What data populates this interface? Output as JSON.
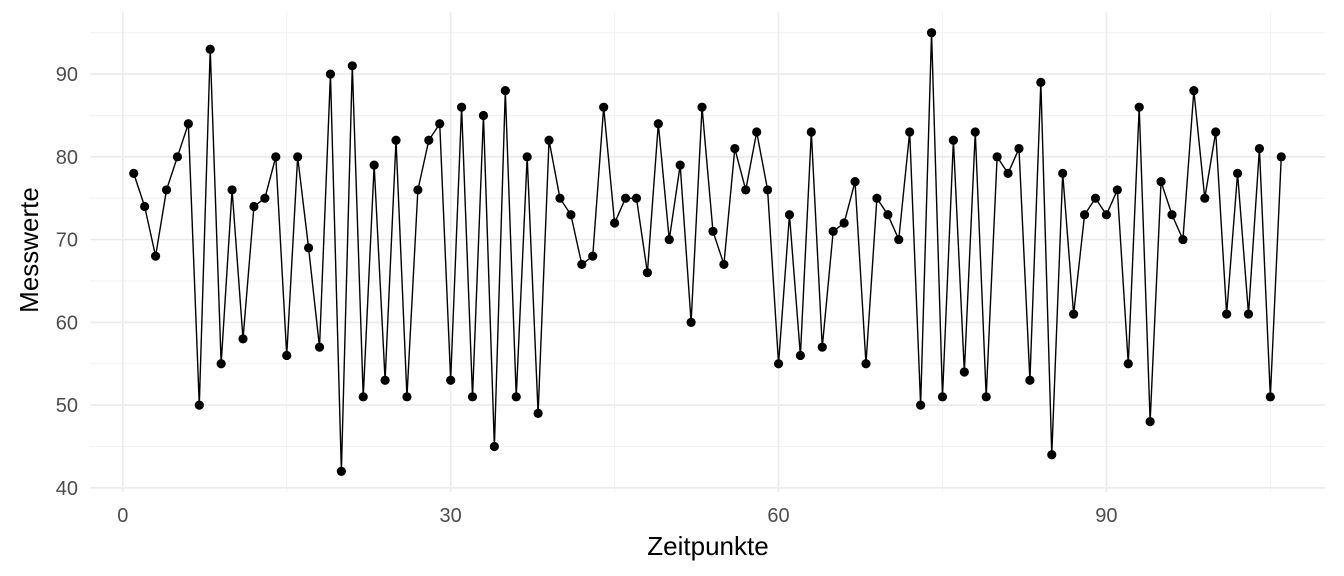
{
  "chart_data": {
    "type": "line",
    "title": "",
    "xlabel": "Zeitpunkte",
    "ylabel": "Messwerte",
    "xlim": [
      -3,
      110
    ],
    "ylim": [
      39.5,
      97.5
    ],
    "x_ticks": [
      0,
      30,
      60,
      90
    ],
    "x_tick_labels": [
      "0",
      "30",
      "60",
      "90"
    ],
    "x_minor_ticks": [
      15,
      45,
      75,
      105
    ],
    "y_ticks": [
      40,
      50,
      60,
      70,
      80,
      90
    ],
    "y_tick_labels": [
      "40",
      "50",
      "60",
      "70",
      "80",
      "90"
    ],
    "y_minor_ticks": [
      45,
      55,
      65,
      75,
      85,
      95
    ],
    "grid": true,
    "legend": "none",
    "colors": {
      "line": "#000000",
      "point": "#000000",
      "grid_major": "#ebebeb",
      "grid_minor": "#f2f2f2",
      "tick_text": "#4d4d4d"
    },
    "series": [
      {
        "x": [
          1,
          2,
          3,
          4,
          5,
          6,
          7,
          8,
          9,
          10,
          11,
          12,
          13,
          14,
          15,
          16,
          17,
          18,
          19,
          20,
          21,
          22,
          23,
          24,
          25,
          26,
          27,
          28,
          29,
          30,
          31,
          32,
          33,
          34,
          35,
          36,
          37,
          38,
          39,
          40,
          41,
          42,
          43,
          44,
          45,
          46,
          47,
          48,
          49,
          50,
          51,
          52,
          53,
          54,
          55,
          56,
          57,
          58,
          59,
          60,
          61,
          62,
          63,
          64,
          65,
          66,
          67,
          68,
          69,
          70,
          71,
          72,
          73,
          74,
          75,
          76,
          77,
          78,
          79,
          80,
          81,
          82,
          83,
          84,
          85,
          86,
          87,
          88,
          89,
          90,
          91,
          92,
          93,
          94,
          95,
          96,
          97,
          98,
          99,
          100,
          101,
          102,
          103,
          104,
          105,
          106
        ],
        "values": [
          78,
          74,
          68,
          76,
          80,
          84,
          50,
          93,
          55,
          76,
          58,
          74,
          75,
          80,
          56,
          80,
          69,
          57,
          90,
          42,
          91,
          51,
          79,
          53,
          82,
          51,
          76,
          82,
          84,
          53,
          86,
          51,
          85,
          45,
          88,
          51,
          80,
          49,
          82,
          75,
          73,
          67,
          68,
          86,
          72,
          75,
          75,
          66,
          84,
          70,
          79,
          60,
          86,
          71,
          67,
          81,
          76,
          83,
          76,
          55,
          73,
          56,
          83,
          57,
          71,
          72,
          77,
          55,
          75,
          73,
          70,
          83,
          50,
          95,
          51,
          82,
          54,
          83,
          51,
          80,
          78,
          81,
          53,
          89,
          44,
          78,
          61,
          73,
          75,
          73,
          76,
          55,
          86,
          48,
          77,
          73,
          70,
          88,
          75,
          83,
          61,
          78,
          61,
          81,
          51,
          80
        ]
      }
    ]
  }
}
